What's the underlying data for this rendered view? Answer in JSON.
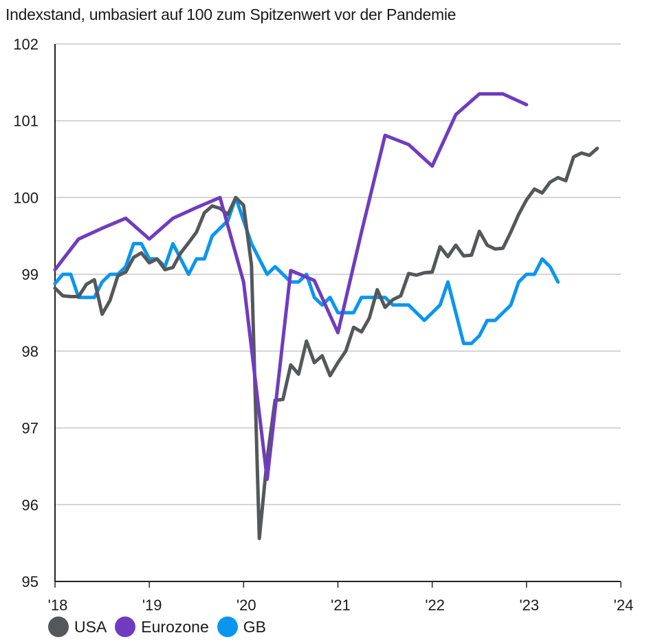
{
  "chart_data": {
    "type": "line",
    "title": "",
    "subtitle": "Indexstand, umbasiert auf 100 zum Spitzenwert vor der Pandemie",
    "xlabel": "",
    "ylabel": "",
    "ylim": [
      95,
      102
    ],
    "xlim": [
      2018.0,
      2024.0
    ],
    "yticks": [
      "95",
      "96",
      "97",
      "98",
      "99",
      "100",
      "101",
      "102"
    ],
    "ytick_values": [
      95,
      96,
      97,
      98,
      99,
      100,
      101,
      102
    ],
    "xticks": [
      "'18",
      "'19",
      "'20",
      "'21",
      "'22",
      "'23",
      "'24"
    ],
    "xtick_values": [
      2018,
      2019,
      2020,
      2021,
      2022,
      2023,
      2024
    ],
    "grid": "horizontal",
    "legend_position": "bottom-left",
    "series": [
      {
        "name": "USA",
        "color": "#54585a",
        "frequency": "monthly",
        "start": 2018.0,
        "values": [
          98.82,
          98.72,
          98.71,
          98.71,
          98.87,
          98.93,
          98.48,
          98.66,
          98.98,
          99.03,
          99.22,
          99.28,
          99.15,
          99.2,
          99.06,
          99.09,
          99.28,
          99.41,
          99.55,
          99.8,
          99.89,
          99.86,
          99.78,
          100.0,
          99.9,
          99.12,
          95.56,
          96.6,
          97.36,
          97.37,
          97.82,
          97.7,
          98.13,
          97.85,
          97.94,
          97.68,
          97.85,
          98.0,
          98.31,
          98.25,
          98.43,
          98.8,
          98.57,
          98.67,
          98.72,
          99.01,
          98.99,
          99.02,
          99.03,
          99.36,
          99.23,
          99.38,
          99.24,
          99.25,
          99.56,
          99.38,
          99.33,
          99.34,
          99.55,
          99.78,
          99.97,
          100.11,
          100.06,
          100.2,
          100.26,
          100.22,
          100.53,
          100.58,
          100.55,
          100.64
        ]
      },
      {
        "name": "Eurozone",
        "color": "#6f3cbf",
        "frequency": "quarterly",
        "start": 2018.0,
        "values": [
          99.06,
          99.46,
          99.6,
          99.73,
          99.46,
          99.73,
          99.87,
          100.0,
          98.9,
          96.33,
          99.05,
          98.92,
          98.24,
          99.55,
          100.81,
          100.69,
          100.41,
          101.08,
          101.35,
          101.35,
          101.21
        ]
      },
      {
        "name": "GB",
        "color": "#0a96ef",
        "frequency": "monthly",
        "start": 2018.0,
        "values": [
          98.88,
          99.0,
          99.0,
          98.7,
          98.7,
          98.7,
          98.9,
          99.0,
          99.0,
          99.1,
          99.4,
          99.4,
          99.2,
          99.2,
          99.1,
          99.4,
          99.2,
          99.0,
          99.2,
          99.2,
          99.5,
          99.6,
          99.7,
          100.0,
          99.7,
          99.4,
          99.2,
          99.0,
          99.1,
          99.0,
          98.9,
          98.9,
          99.0,
          98.7,
          98.6,
          98.7,
          98.5,
          98.5,
          98.5,
          98.7,
          98.7,
          98.7,
          98.7,
          98.6,
          98.6,
          98.6,
          98.5,
          98.4,
          98.5,
          98.6,
          98.9,
          98.5,
          98.1,
          98.1,
          98.2,
          98.4,
          98.4,
          98.5,
          98.6,
          98.9,
          99.0,
          99.0,
          99.2,
          99.1,
          98.9
        ]
      }
    ]
  }
}
